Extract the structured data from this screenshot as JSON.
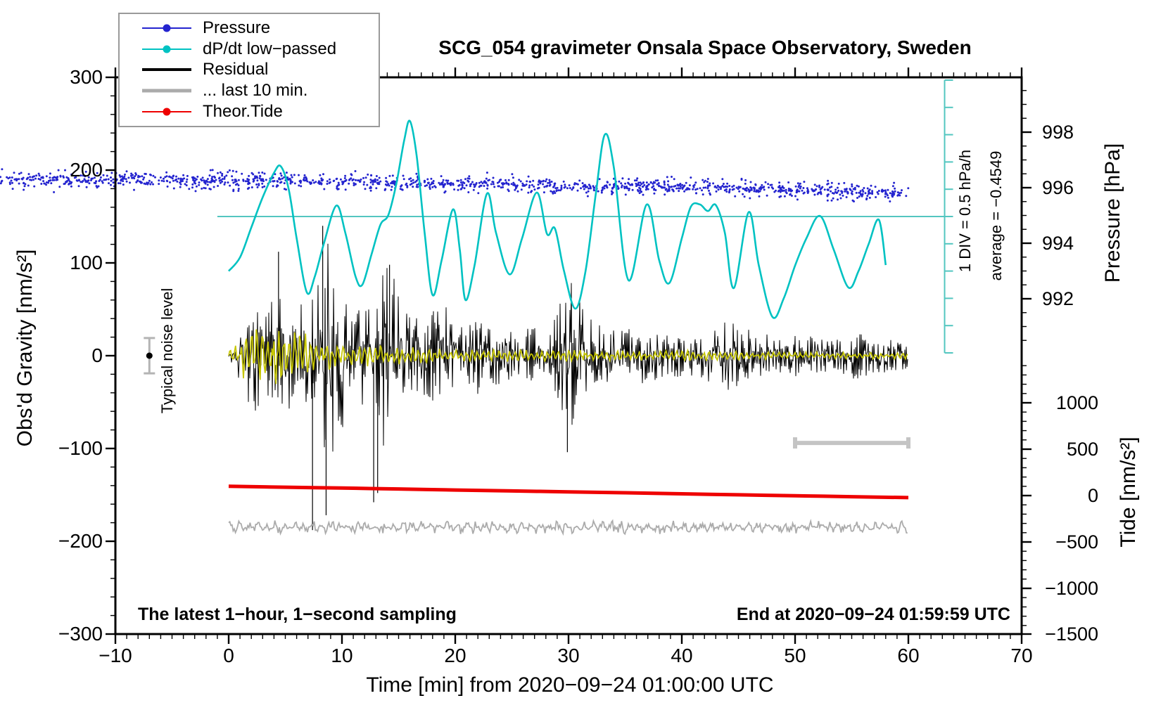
{
  "title": "SCG_054 gravimeter Onsala Space Observatory, Sweden",
  "colors": {
    "pressure_blue": "#2424cf",
    "dpdt_cyan": "#00c2c2",
    "ref_teal": "#53c6c0",
    "residual_black": "#000000",
    "residual_filtered_yellow": "#c6c600",
    "last10_gray": "#ababab",
    "window_bar_gray": "#c4c4c4",
    "tide_red": "#ee0000",
    "noise_marker_gray": "#b4b4b4"
  },
  "legend": {
    "items": [
      {
        "label": "Pressure",
        "style": "line-dot",
        "color_key": "pressure_blue"
      },
      {
        "label": "dP/dt low−passed",
        "style": "line-dot",
        "color_key": "dpdt_cyan"
      },
      {
        "label": "Residual",
        "style": "thick-line",
        "color_key": "residual_black"
      },
      {
        "label": "... last 10 min.",
        "style": "thick-line",
        "color_key": "last10_gray"
      },
      {
        "label": "Theor.Tide",
        "style": "line-dot",
        "color_key": "tide_red"
      }
    ]
  },
  "annotations": {
    "div_note": "1 DIV = 0.5 hPa/h",
    "average_note": "average = −0.4549",
    "noise_note": "Typical noise level",
    "sampling_note": "The latest 1−hour, 1−second sampling",
    "end_note": "End at 2020−09−24 01:59:59 UTC"
  },
  "chart_data": {
    "type": "line",
    "title": "SCG_054 gravimeter Onsala Space Observatory, Sweden",
    "xlabel": "Time [min] from 2020−09−24 01:00:00 UTC",
    "grid": false,
    "axes": {
      "x": {
        "label": "Time [min] from 2020−09−24 01:00:00 UTC",
        "min": -10,
        "max": 70,
        "minor_step": 1,
        "ticks": [
          {
            "v": -10,
            "label": "−10"
          },
          {
            "v": 0,
            "label": "0"
          },
          {
            "v": 10,
            "label": "10"
          },
          {
            "v": 20,
            "label": "20"
          },
          {
            "v": 30,
            "label": "30"
          },
          {
            "v": 40,
            "label": "40"
          },
          {
            "v": 50,
            "label": "50"
          },
          {
            "v": 60,
            "label": "60"
          },
          {
            "v": 70,
            "label": "70"
          }
        ]
      },
      "gravity": {
        "label": "Obs'd Gravity [nm/s²]",
        "min": -300,
        "max": 300,
        "minor_step": 20,
        "ticks": [
          {
            "v": 300,
            "label": "300"
          },
          {
            "v": 200,
            "label": "200"
          },
          {
            "v": 100,
            "label": "100"
          },
          {
            "v": 0,
            "label": "0"
          },
          {
            "v": -100,
            "label": "−100"
          },
          {
            "v": -200,
            "label": "−200"
          },
          {
            "v": -300,
            "label": "−300"
          }
        ]
      },
      "pressure": {
        "label": "Pressure [hPa]",
        "minor_step": 0.5,
        "minor_min": 990.5,
        "minor_max": 999.5,
        "ticks": [
          {
            "v": 998,
            "label": "998"
          },
          {
            "v": 996,
            "label": "996"
          },
          {
            "v": 994,
            "label": "994"
          },
          {
            "v": 992,
            "label": "992"
          }
        ]
      },
      "tide": {
        "label": "Tide [nm/s²]",
        "minor_step": 100,
        "minor_min": -1400,
        "minor_max": 1400,
        "ticks": [
          {
            "v": 1000,
            "label": "1000"
          },
          {
            "v": 500,
            "label": "500"
          },
          {
            "v": 0,
            "label": "0"
          },
          {
            "v": -500,
            "label": "−500"
          },
          {
            "v": -1000,
            "label": "−1000"
          },
          {
            "v": -1500,
            "label": "−1500"
          }
        ]
      },
      "dpdt_scalebar": {
        "div_value_hpa_per_h": 0.5,
        "divs_each_side": 5,
        "zero_at_gravity": 150
      }
    },
    "series": [
      {
        "name": "pressure",
        "axis": "pressure",
        "render": "noisy-dots",
        "base_points": [
          [
            0,
            996.38
          ],
          [
            3,
            996.4
          ],
          [
            6,
            996.33
          ],
          [
            10,
            996.32
          ],
          [
            14,
            996.28
          ],
          [
            18,
            996.26
          ],
          [
            22,
            996.25
          ],
          [
            26,
            996.23
          ],
          [
            30,
            996.17
          ],
          [
            34,
            996.16
          ],
          [
            38,
            996.14
          ],
          [
            42,
            996.12
          ],
          [
            46,
            996.08
          ],
          [
            50,
            996.02
          ],
          [
            54,
            995.97
          ],
          [
            57,
            995.94
          ],
          [
            60,
            995.92
          ]
        ],
        "noise_sigma_hpa": 0.05,
        "outlier_max_hpa": 0.28
      },
      {
        "name": "dpdt_lowpassed",
        "axis": "dpdt",
        "render": "smooth-line",
        "points": [
          [
            0,
            -1.0
          ],
          [
            1,
            -0.75
          ],
          [
            2,
            -0.2
          ],
          [
            3,
            0.35
          ],
          [
            4,
            0.8
          ],
          [
            4.6,
            0.92
          ],
          [
            5.3,
            0.5
          ],
          [
            6,
            -0.4
          ],
          [
            6.9,
            -1.39
          ],
          [
            7.6,
            -1.1
          ],
          [
            8.4,
            -0.5
          ],
          [
            9.5,
            0.2
          ],
          [
            10.3,
            -0.3
          ],
          [
            11.2,
            -1.1
          ],
          [
            11.8,
            -1.25
          ],
          [
            12.6,
            -0.7
          ],
          [
            13.4,
            -0.15
          ],
          [
            14.1,
            0.03
          ],
          [
            14.8,
            0.6
          ],
          [
            15.5,
            1.4
          ],
          [
            16,
            1.75
          ],
          [
            16.6,
            1.1
          ],
          [
            17.3,
            -0.3
          ],
          [
            18,
            -1.44
          ],
          [
            18.8,
            -0.8
          ],
          [
            19.8,
            0.13
          ],
          [
            20.4,
            -0.6
          ],
          [
            20.9,
            -1.53
          ],
          [
            21.7,
            -0.9
          ],
          [
            22.8,
            0.42
          ],
          [
            23.6,
            -0.3
          ],
          [
            24.8,
            -1.06
          ],
          [
            25.9,
            -0.4
          ],
          [
            27.2,
            0.44
          ],
          [
            28.1,
            -0.32
          ],
          [
            28.8,
            -0.22
          ],
          [
            29.6,
            -1.0
          ],
          [
            30.6,
            -1.69
          ],
          [
            31.5,
            -1.0
          ],
          [
            32.4,
            0.4
          ],
          [
            33.2,
            1.5
          ],
          [
            34,
            0.9
          ],
          [
            35.3,
            -1.17
          ],
          [
            36.9,
            0.22
          ],
          [
            38,
            -0.8
          ],
          [
            38.9,
            -1.22
          ],
          [
            40,
            -0.4
          ],
          [
            40.8,
            0.18
          ],
          [
            41.6,
            0.22
          ],
          [
            42.3,
            0.1
          ],
          [
            43,
            0.21
          ],
          [
            43.8,
            -0.3
          ],
          [
            44.6,
            -1.31
          ],
          [
            45.9,
            0.08
          ],
          [
            46.8,
            -0.9
          ],
          [
            48,
            -1.84
          ],
          [
            49,
            -1.5
          ],
          [
            50,
            -0.9
          ],
          [
            51,
            -0.4
          ],
          [
            52.2,
            0.01
          ],
          [
            53.4,
            -0.6
          ],
          [
            54.7,
            -1.3
          ],
          [
            55.6,
            -1.0
          ],
          [
            56.5,
            -0.5
          ],
          [
            57.4,
            -0.06
          ],
          [
            58,
            -0.89
          ]
        ]
      },
      {
        "name": "residual",
        "axis": "gravity",
        "render": "noise-band",
        "center": 0,
        "envelope": [
          [
            0,
            5
          ],
          [
            0.5,
            12
          ],
          [
            1,
            30
          ],
          [
            1.5,
            45
          ],
          [
            2,
            60
          ],
          [
            3,
            62
          ],
          [
            4,
            70
          ],
          [
            4.5,
            60
          ],
          [
            5,
            78
          ],
          [
            5.5,
            65
          ],
          [
            6,
            62
          ],
          [
            7,
            55
          ],
          [
            7.5,
            70
          ],
          [
            8,
            80
          ],
          [
            8.5,
            118
          ],
          [
            9,
            148
          ],
          [
            9.3,
            90
          ],
          [
            9.6,
            145
          ],
          [
            10,
            80
          ],
          [
            10.5,
            55
          ],
          [
            11,
            50
          ],
          [
            12,
            58
          ],
          [
            12.5,
            70
          ],
          [
            13,
            60
          ],
          [
            13.5,
            95
          ],
          [
            14,
            112
          ],
          [
            14.5,
            95
          ],
          [
            15,
            70
          ],
          [
            15.5,
            55
          ],
          [
            16,
            48
          ],
          [
            17,
            42
          ],
          [
            18,
            52
          ],
          [
            19,
            55
          ],
          [
            20,
            48
          ],
          [
            21,
            40
          ],
          [
            22,
            42
          ],
          [
            23,
            30
          ],
          [
            24,
            32
          ],
          [
            25,
            30
          ],
          [
            26,
            28
          ],
          [
            27,
            32
          ],
          [
            28,
            30
          ],
          [
            29,
            45
          ],
          [
            29.5,
            70
          ],
          [
            30,
            85
          ],
          [
            30.5,
            75
          ],
          [
            31,
            60
          ],
          [
            31.5,
            50
          ],
          [
            32,
            42
          ],
          [
            33,
            32
          ],
          [
            34,
            30
          ],
          [
            35,
            32
          ],
          [
            36,
            28
          ],
          [
            37,
            32
          ],
          [
            38,
            25
          ],
          [
            39,
            22
          ],
          [
            40,
            25
          ],
          [
            41,
            30
          ],
          [
            42,
            28
          ],
          [
            43,
            32
          ],
          [
            44,
            38
          ],
          [
            45,
            32
          ],
          [
            46,
            30
          ],
          [
            47,
            26
          ],
          [
            48,
            22
          ],
          [
            49,
            20
          ],
          [
            50,
            22
          ],
          [
            51,
            25
          ],
          [
            52,
            20
          ],
          [
            53,
            18
          ],
          [
            54,
            20
          ],
          [
            55,
            28
          ],
          [
            56,
            24
          ],
          [
            57,
            20
          ],
          [
            58,
            18
          ],
          [
            59,
            16
          ],
          [
            60,
            15
          ]
        ],
        "spikes": [
          [
            4.4,
            112
          ],
          [
            7.4,
            -188
          ],
          [
            8.3,
            140
          ],
          [
            8.6,
            -172
          ],
          [
            12.8,
            -158
          ],
          [
            13.15,
            -148
          ],
          [
            14.2,
            98
          ],
          [
            29.9,
            -104
          ]
        ]
      },
      {
        "name": "residual_filtered",
        "axis": "gravity",
        "render": "noise-band",
        "center": 0,
        "envelope": [
          [
            0,
            8
          ],
          [
            0.5,
            15
          ],
          [
            1,
            22
          ],
          [
            1.5,
            30
          ],
          [
            2,
            38
          ],
          [
            2.5,
            42
          ],
          [
            3,
            40
          ],
          [
            3.5,
            36
          ],
          [
            4,
            33
          ],
          [
            5,
            30
          ],
          [
            6,
            26
          ],
          [
            7,
            24
          ],
          [
            8,
            22
          ],
          [
            9,
            20
          ],
          [
            10,
            16
          ],
          [
            11,
            14
          ],
          [
            12,
            13
          ],
          [
            13,
            14
          ],
          [
            14,
            13
          ],
          [
            15,
            11
          ],
          [
            16,
            10
          ],
          [
            17,
            9
          ],
          [
            18,
            9
          ],
          [
            20,
            8
          ],
          [
            22,
            8
          ],
          [
            24,
            7
          ],
          [
            26,
            7
          ],
          [
            28,
            7
          ],
          [
            30,
            9
          ],
          [
            32,
            7
          ],
          [
            34,
            6
          ],
          [
            36,
            6
          ],
          [
            38,
            6
          ],
          [
            40,
            6
          ],
          [
            42,
            6
          ],
          [
            44,
            6
          ],
          [
            46,
            5
          ],
          [
            48,
            5
          ],
          [
            50,
            5
          ],
          [
            52,
            5
          ],
          [
            54,
            4
          ],
          [
            56,
            4
          ],
          [
            58,
            4
          ],
          [
            60,
            4
          ]
        ],
        "spikes": []
      },
      {
        "name": "residual_last10",
        "axis": "gravity",
        "render": "wiggle-line",
        "center": -185,
        "amplitude": 7.5
      },
      {
        "name": "theor_tide",
        "axis": "tide",
        "render": "thick-line",
        "points": [
          [
            0,
            100
          ],
          [
            5,
            90
          ],
          [
            10,
            81
          ],
          [
            15,
            71
          ],
          [
            20,
            60
          ],
          [
            25,
            50
          ],
          [
            30,
            40
          ],
          [
            35,
            30
          ],
          [
            40,
            19
          ],
          [
            45,
            8
          ],
          [
            50,
            -2
          ],
          [
            55,
            -12
          ],
          [
            60,
            -22
          ]
        ]
      }
    ],
    "reference_marks": {
      "dpdt_zero_line": {
        "t_start": -1,
        "t_end": 63.2,
        "value": 0
      },
      "dpdt_scalebar": {
        "t": 63.2,
        "from_hpa_h": 2.5,
        "to_hpa_h": -2.5,
        "tick_step_hpa_h": 0.5
      },
      "last10_window_bar": {
        "t_start": 50,
        "t_end": 60,
        "gravity_value": -94
      },
      "noise_marker": {
        "t": -7,
        "gravity_value": 0,
        "error": 19
      }
    },
    "time_range_min": [
      0,
      60
    ]
  }
}
